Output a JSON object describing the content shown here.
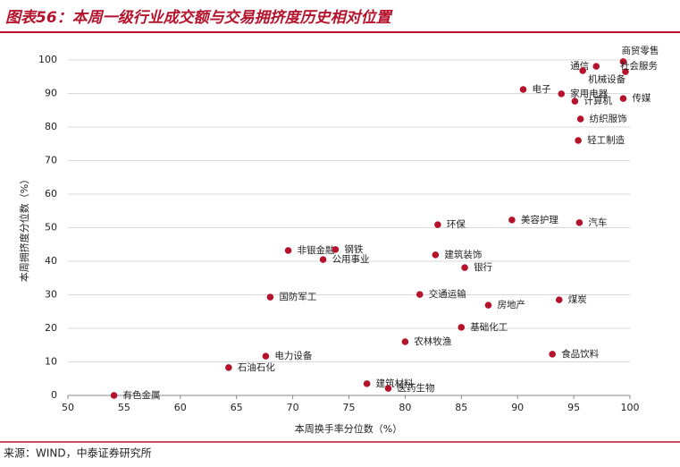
{
  "header": {
    "title": "图表56：本周一级行业成交额与交易拥挤度历史相对位置"
  },
  "chart_data": {
    "type": "scatter",
    "x_label": "本周换手率分位数（%）",
    "y_label": "本周拥挤度分位数（%）",
    "color": "#b5122b",
    "grid": true,
    "xlim": [
      50,
      100
    ],
    "xticks": [
      50,
      55,
      60,
      65,
      70,
      75,
      80,
      85,
      90,
      95,
      100
    ],
    "ylim": [
      0,
      100
    ],
    "yticks": [
      0,
      10,
      20,
      30,
      40,
      50,
      60,
      70,
      80,
      90,
      100
    ],
    "labels": [
      "商贸零售",
      "通信",
      "机械设备",
      "社会服务",
      "电子",
      "家用电器",
      "计算机",
      "传媒",
      "纺织服饰",
      "轻工制造",
      "环保",
      "美容护理",
      "汽车",
      "非银金融",
      "钢铁",
      "公用事业",
      "建筑装饰",
      "银行",
      "国防军工",
      "交通运输",
      "房地产",
      "煤炭",
      "基础化工",
      "农林牧渔",
      "电力设备",
      "食品饮料",
      "石油石化",
      "建筑材料",
      "医药生物",
      "有色金属"
    ],
    "x": [
      99.4,
      97.0,
      95.8,
      99.6,
      90.5,
      93.9,
      95.1,
      99.4,
      95.6,
      95.4,
      82.9,
      89.5,
      95.5,
      69.6,
      73.8,
      72.7,
      82.7,
      85.3,
      68.0,
      81.3,
      87.4,
      93.7,
      85.0,
      80.0,
      67.6,
      93.1,
      64.3,
      76.6,
      78.5,
      54.1
    ],
    "values": [
      99.5,
      98.1,
      96.8,
      96.5,
      91.2,
      89.9,
      87.7,
      88.5,
      82.4,
      76.0,
      50.9,
      52.3,
      51.5,
      43.2,
      43.5,
      40.5,
      41.9,
      38.1,
      29.3,
      30.1,
      26.9,
      28.5,
      20.3,
      16.0,
      11.7,
      12.3,
      8.3,
      3.5,
      2.1,
      0.0
    ]
  },
  "footer": {
    "source": "来源：WIND，中泰证券研究所"
  }
}
